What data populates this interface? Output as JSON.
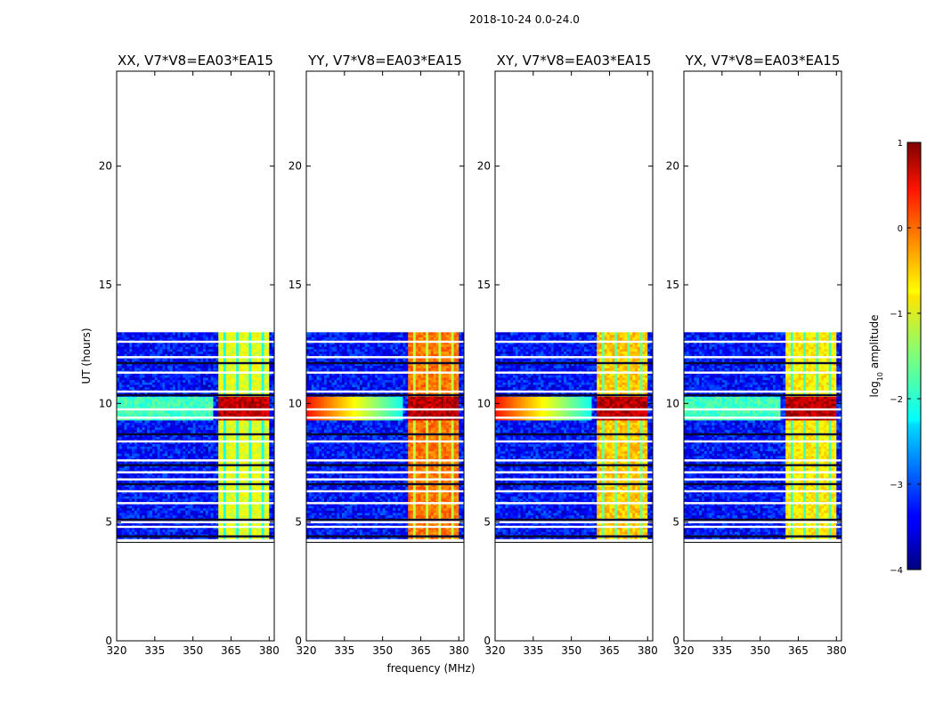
{
  "figure": {
    "suptitle": "2018-10-24 0.0-24.0",
    "ylabel": "UT (hours)",
    "xlabel": "frequency (MHz)"
  },
  "colorbar": {
    "label": "log",
    "label_sub": "10",
    "label_rest": " amplitude",
    "range": [
      -4,
      1
    ],
    "ticks": [
      1,
      0,
      -1,
      -2,
      -3,
      -4
    ],
    "tick_labels": [
      "1",
      "0",
      "−1",
      "−2",
      "−3",
      "−4"
    ],
    "colormap": "jet"
  },
  "chart_data": [
    {
      "type": "heatmap",
      "title": "XX, V7*V8=EA03*EA15",
      "polarization": "XX",
      "xlim": [
        320,
        382
      ],
      "ylim": [
        0,
        24
      ],
      "xticks": [
        320,
        335,
        350,
        365,
        380
      ],
      "yticks": [
        0,
        5,
        10,
        15,
        20
      ],
      "data_time_range_hours": [
        4.3,
        13.0
      ],
      "rfi_band_mhz": [
        360,
        380
      ],
      "high_amplitude_window_hours": [
        9.3,
        10.2
      ],
      "background_log10_amplitude": -3.3,
      "band_log10_amplitude": -1.0,
      "peak_log10_amplitude": 1.0,
      "flagged_rows_hours": [
        4.4,
        4.8,
        5.0,
        5.1,
        5.8,
        6.3,
        6.6,
        6.8,
        7.1,
        7.4,
        7.6,
        8.4,
        8.7,
        9.4,
        9.75,
        10.35,
        10.5,
        11.3,
        11.7,
        11.95,
        12.6
      ]
    },
    {
      "type": "heatmap",
      "title": "YY, V7*V8=EA03*EA15",
      "polarization": "YY",
      "xlim": [
        320,
        382
      ],
      "ylim": [
        0,
        24
      ],
      "xticks": [
        320,
        335,
        350,
        365,
        380
      ],
      "yticks": [
        0,
        5,
        10,
        15,
        20
      ],
      "data_time_range_hours": [
        4.3,
        13.0
      ],
      "rfi_band_mhz": [
        360,
        380
      ],
      "high_amplitude_window_hours": [
        9.3,
        10.2
      ],
      "background_log10_amplitude": -3.3,
      "band_log10_amplitude": -0.2,
      "peak_log10_amplitude": 1.0,
      "flagged_rows_hours": [
        4.4,
        4.8,
        5.0,
        5.1,
        5.8,
        6.3,
        6.6,
        6.8,
        7.1,
        7.4,
        7.6,
        8.4,
        8.7,
        9.4,
        9.75,
        10.35,
        10.5,
        11.3,
        11.7,
        11.95,
        12.6
      ]
    },
    {
      "type": "heatmap",
      "title": "XY, V7*V8=EA03*EA15",
      "polarization": "XY",
      "xlim": [
        320,
        382
      ],
      "ylim": [
        0,
        24
      ],
      "xticks": [
        320,
        335,
        350,
        365,
        380
      ],
      "yticks": [
        0,
        5,
        10,
        15,
        20
      ],
      "data_time_range_hours": [
        4.3,
        13.0
      ],
      "rfi_band_mhz": [
        360,
        380
      ],
      "high_amplitude_window_hours": [
        9.3,
        10.2
      ],
      "background_log10_amplitude": -3.3,
      "band_log10_amplitude": -0.6,
      "peak_log10_amplitude": 1.0,
      "flagged_rows_hours": [
        4.4,
        4.8,
        5.0,
        5.1,
        5.8,
        6.3,
        6.6,
        6.8,
        7.1,
        7.4,
        7.6,
        8.4,
        8.7,
        9.4,
        9.75,
        10.35,
        10.5,
        11.3,
        11.7,
        11.95,
        12.6
      ]
    },
    {
      "type": "heatmap",
      "title": "YX, V7*V8=EA03*EA15",
      "polarization": "YX",
      "xlim": [
        320,
        382
      ],
      "ylim": [
        0,
        24
      ],
      "xticks": [
        320,
        335,
        350,
        365,
        380
      ],
      "yticks": [
        0,
        5,
        10,
        15,
        20
      ],
      "data_time_range_hours": [
        4.3,
        13.0
      ],
      "rfi_band_mhz": [
        360,
        380
      ],
      "high_amplitude_window_hours": [
        9.3,
        10.2
      ],
      "background_log10_amplitude": -3.3,
      "band_log10_amplitude": -0.8,
      "peak_log10_amplitude": 1.0,
      "flagged_rows_hours": [
        4.4,
        4.8,
        5.0,
        5.1,
        5.8,
        6.3,
        6.6,
        6.8,
        7.1,
        7.4,
        7.6,
        8.4,
        8.7,
        9.4,
        9.75,
        10.35,
        10.5,
        11.3,
        11.7,
        11.95,
        12.6
      ]
    }
  ]
}
